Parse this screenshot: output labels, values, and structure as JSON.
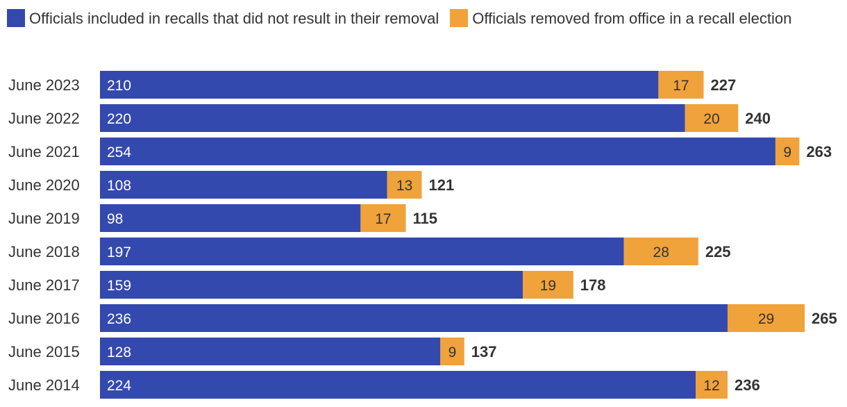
{
  "chart_data": {
    "type": "bar",
    "orientation": "horizontal",
    "stacked": true,
    "categories": [
      "June 2023",
      "June 2022",
      "June 2021",
      "June 2020",
      "June 2019",
      "June 2018",
      "June 2017",
      "June 2016",
      "June 2015",
      "June 2014"
    ],
    "series": [
      {
        "name": "Officials included in recalls that did not result in their removal",
        "color": "#3449ae",
        "values": [
          210,
          220,
          254,
          108,
          98,
          197,
          159,
          236,
          128,
          224
        ]
      },
      {
        "name": "Officials removed from office in a recall election",
        "color": "#f0a23b",
        "values": [
          17,
          20,
          9,
          13,
          17,
          28,
          19,
          29,
          9,
          12
        ]
      }
    ],
    "totals": [
      227,
      240,
      263,
      121,
      115,
      225,
      178,
      265,
      137,
      236
    ],
    "legend_position": "top",
    "grid": false,
    "xlim": [
      0,
      270
    ]
  }
}
